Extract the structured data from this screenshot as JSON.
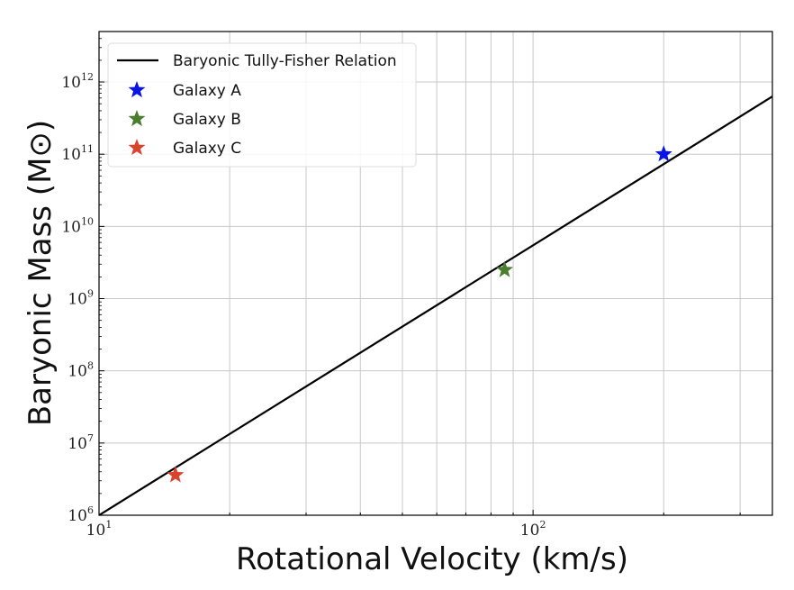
{
  "chart_data": {
    "type": "scatter",
    "title": "",
    "xlabel": "Rotational Velocity (km/s)",
    "ylabel": "Baryonic Mass (M⊙)",
    "xscale": "log",
    "yscale": "log",
    "xlim": [
      10,
      356
    ],
    "ylim": [
      1000000,
      5000000000000
    ],
    "grid": true,
    "x_ticks": [
      {
        "base": "10",
        "exp": "1",
        "value": 10
      },
      {
        "base": "10",
        "exp": "2",
        "value": 100
      }
    ],
    "y_ticks": [
      {
        "base": "10",
        "exp": "6",
        "value": 1000000.0
      },
      {
        "base": "10",
        "exp": "7",
        "value": 10000000.0
      },
      {
        "base": "10",
        "exp": "8",
        "value": 100000000.0
      },
      {
        "base": "10",
        "exp": "9",
        "value": 1000000000.0
      },
      {
        "base": "10",
        "exp": "10",
        "value": 10000000000.0
      },
      {
        "base": "10",
        "exp": "11",
        "value": 100000000000.0
      },
      {
        "base": "10",
        "exp": "12",
        "value": 1000000000000.0
      }
    ],
    "legend_position": "top-left",
    "line": {
      "name": "Baryonic Tully-Fisher Relation",
      "color": "#000000",
      "x": [
        10,
        356
      ],
      "y": [
        1000000,
        630000000000
      ]
    },
    "series": [
      {
        "name": "Galaxy A",
        "color": "#0a14e6",
        "x": 200,
        "y": 100000000000
      },
      {
        "name": "Galaxy B",
        "color": "#4a7d2e",
        "x": 86,
        "y": 2500000000
      },
      {
        "name": "Galaxy C",
        "color": "#d9442e",
        "x": 15,
        "y": 3600000
      }
    ]
  }
}
